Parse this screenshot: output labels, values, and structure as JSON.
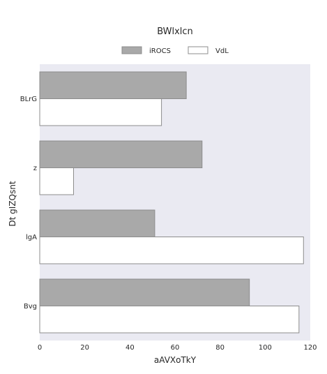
{
  "chart_data": {
    "type": "bar",
    "orientation": "horizontal",
    "title": "BWlxlcn",
    "xlabel": "aAVXoTkY",
    "ylabel": "Dt gIZQsnt",
    "categories": [
      "BLrG",
      "z",
      "lgA",
      "Bvg"
    ],
    "series": [
      {
        "name": "iROCS",
        "values": [
          65,
          72,
          51,
          93
        ],
        "color": "#a9a9a9"
      },
      {
        "name": "VdL",
        "values": [
          54,
          15,
          117,
          115
        ],
        "color": "#ffffff"
      }
    ],
    "xlim": [
      0,
      120
    ],
    "xticks": [
      0,
      20,
      40,
      60,
      80,
      100,
      120
    ],
    "grid": false,
    "legend_position": "top-center",
    "colors": {
      "plot_background": "#eaeaf2",
      "bar_edge": "#8c8c8c"
    }
  }
}
